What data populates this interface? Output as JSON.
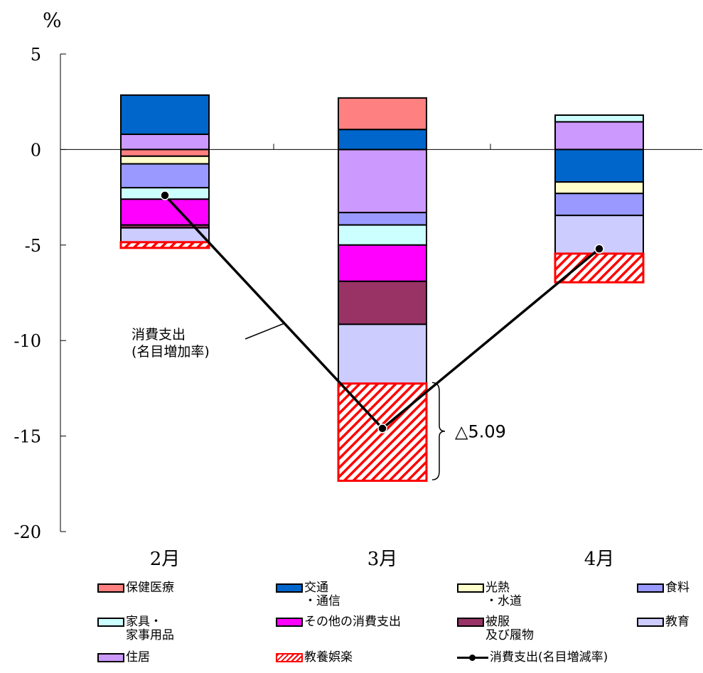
{
  "chart_data": {
    "type": "bar",
    "subtype": "stacked-bar-with-line",
    "unit": "%",
    "categories": [
      "2月",
      "3月",
      "4月"
    ],
    "ylim": [
      -20,
      5
    ],
    "yticks": [
      5,
      0,
      -5,
      -10,
      -15,
      -20
    ],
    "series": [
      {
        "name": "住居",
        "color": "#cc99ff",
        "values": [
          0.8,
          -3.3,
          1.45
        ]
      },
      {
        "name": "交通\n・通信",
        "color": "#0066cc",
        "values": [
          2.05,
          1.05,
          -1.7
        ]
      },
      {
        "name": "保健医療",
        "color": "#ff8080",
        "values": [
          -0.35,
          1.65,
          0
        ]
      },
      {
        "name": "光熱\n・水道",
        "color": "#ffffcc",
        "values": [
          -0.4,
          0,
          -0.6
        ]
      },
      {
        "name": "食料",
        "color": "#9999ff",
        "values": [
          -1.25,
          -0.65,
          -1.15
        ]
      },
      {
        "name": "家具・\n家事用品",
        "color": "#ccffff",
        "values": [
          -0.6,
          -1.05,
          0.35
        ]
      },
      {
        "name": "その他の消費支出",
        "color": "#ff00ff",
        "values": [
          -1.35,
          -1.9,
          0
        ]
      },
      {
        "name": "被服\n及び履物",
        "color": "#993366",
        "values": [
          -0.15,
          -2.25,
          0
        ]
      },
      {
        "name": "教育",
        "color": "#ccccff",
        "values": [
          -0.75,
          -3.1,
          -2.0
        ]
      },
      {
        "name": "教養娯楽",
        "color": "#ff0000",
        "pattern": "hatch",
        "values": [
          -0.3,
          -5.09,
          -1.5
        ]
      }
    ],
    "line": {
      "name": "消費支出(名目増減率)",
      "values": [
        -2.4,
        -14.6,
        -5.2
      ]
    },
    "annotations": {
      "line_callout": "消費支出\n(名目増加率)",
      "brace_value": "△5.09"
    }
  },
  "legend_order": [
    "保健医療",
    "交通\n・通信",
    "光熱\n・水道",
    "食料",
    "家具・\n家事用品",
    "その他の消費支出",
    "被服\n及び履物",
    "教育",
    "住居",
    "教養娯楽",
    "消費支出(名目増減率)"
  ]
}
